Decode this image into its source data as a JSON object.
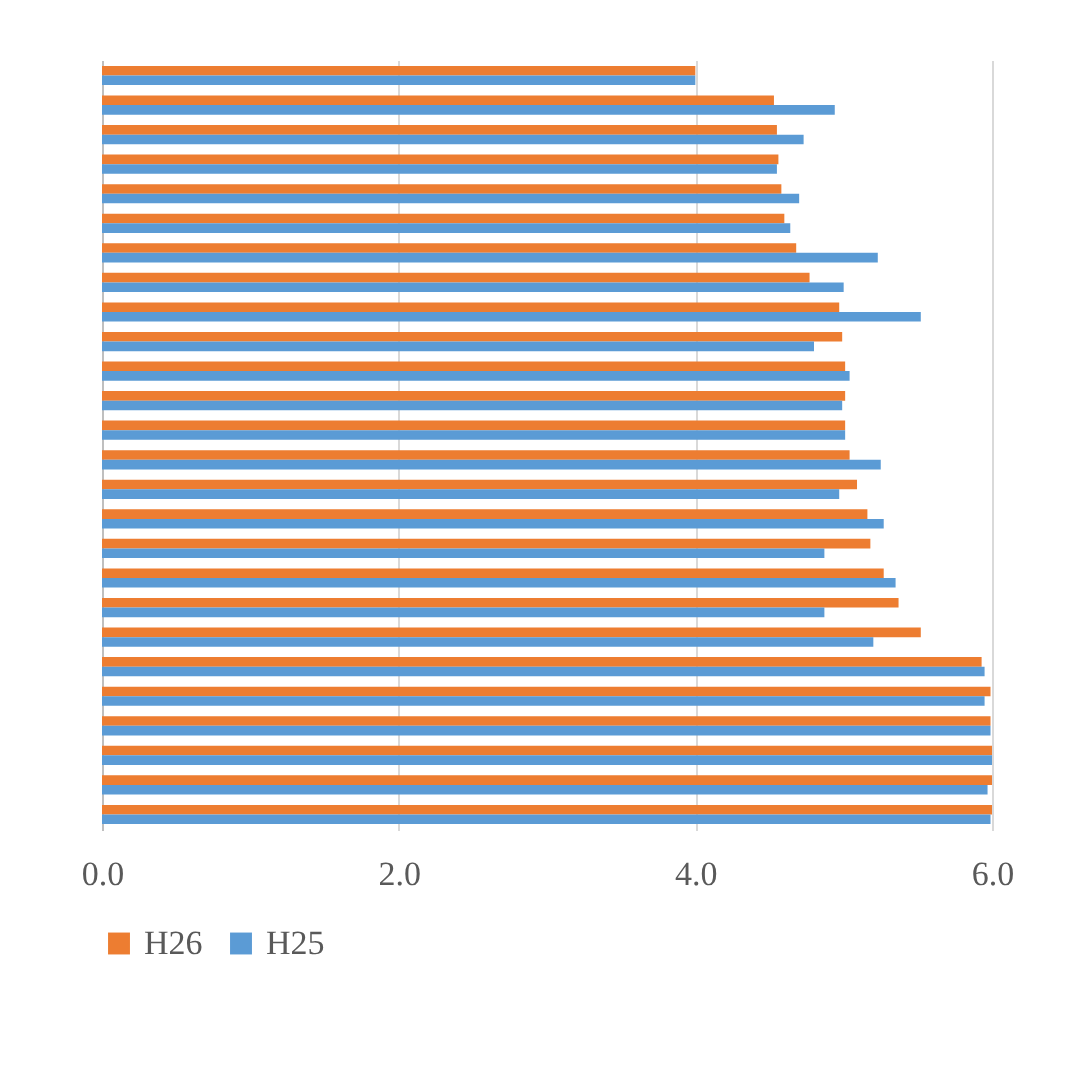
{
  "chart_data": {
    "type": "bar",
    "orientation": "horizontal",
    "categories": [
      null,
      null,
      null,
      null,
      null,
      null,
      null,
      null,
      null,
      null,
      null,
      null,
      null,
      null,
      null,
      null,
      null,
      null,
      null,
      null,
      null,
      null,
      null,
      null,
      null,
      null
    ],
    "series": [
      {
        "name": "H26",
        "color": "#ed7d31",
        "values": [
          4.0,
          4.53,
          4.55,
          4.56,
          4.58,
          4.6,
          4.68,
          4.77,
          4.97,
          4.99,
          5.01,
          5.01,
          5.01,
          5.04,
          5.09,
          5.16,
          5.18,
          5.27,
          5.37,
          5.52,
          5.93,
          5.99,
          5.99,
          6.0,
          6.0,
          6.0
        ]
      },
      {
        "name": "H25",
        "color": "#5b9bd5",
        "values": [
          4.0,
          4.94,
          4.73,
          4.55,
          4.7,
          4.64,
          5.23,
          5.0,
          5.52,
          4.8,
          5.04,
          4.99,
          5.01,
          5.25,
          4.97,
          5.27,
          4.87,
          5.35,
          4.87,
          5.2,
          5.95,
          5.95,
          5.99,
          6.0,
          5.97,
          5.99
        ]
      }
    ],
    "xlim": [
      0,
      6
    ],
    "xticks": [
      {
        "value": 0,
        "label": "0.0"
      },
      {
        "value": 2,
        "label": "2.0"
      },
      {
        "value": 4,
        "label": "4.0"
      },
      {
        "value": 6,
        "label": "6.0"
      }
    ],
    "grid": "x",
    "legend": "bottom",
    "tick_labels": "x"
  }
}
